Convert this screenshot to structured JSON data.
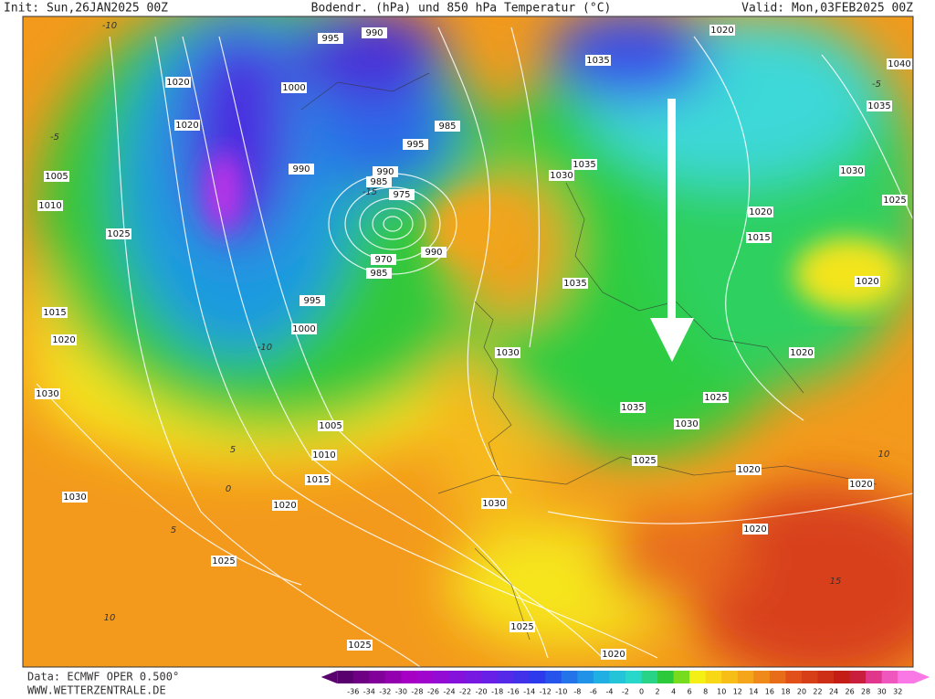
{
  "header": {
    "init": "Init: Sun,26JAN2025 00Z",
    "title": "Bodendr. (hPa) und 850 hPa Temperatur (°C)",
    "valid": "Valid: Mon,03FEB2025 00Z"
  },
  "isobar_labels": [
    1020,
    1020,
    1005,
    1010,
    1025,
    1015,
    1020,
    1030,
    1030,
    1025,
    1020,
    1015,
    1010,
    1005,
    1000,
    995,
    985,
    970,
    990,
    975,
    990,
    985,
    990,
    995,
    985,
    1000,
    995,
    990,
    1035,
    1030,
    1035,
    1035,
    1030,
    1035,
    1030,
    1025,
    1020,
    1025,
    1020,
    1020,
    1015,
    1020,
    1030,
    1025,
    1035,
    1040,
    1020,
    1030,
    1020,
    1020,
    1025,
    1025,
    1020
  ],
  "temperature_labels": [
    -10,
    -5,
    -15,
    -10,
    5,
    0,
    5,
    10,
    15,
    10,
    -5
  ],
  "footer": {
    "data": "Data: ECMWF OPER 0.500°",
    "site": "WWW.WETTERZENTRALE.DE"
  },
  "colorbar_labels": [
    -36,
    -34,
    -32,
    -30,
    -28,
    -26,
    -24,
    -22,
    -20,
    -18,
    -16,
    -14,
    -12,
    -10,
    -8,
    -6,
    -4,
    -2,
    0,
    2,
    4,
    6,
    8,
    10,
    12,
    14,
    16,
    18,
    20,
    22,
    24,
    26,
    28,
    30,
    32
  ]
}
